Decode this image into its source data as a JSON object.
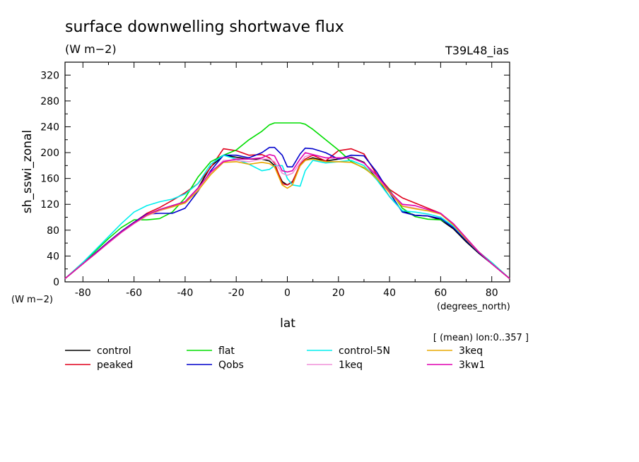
{
  "chart_data": {
    "type": "line",
    "title": "surface downwelling shortwave flux",
    "units": "(W m−2)",
    "model": "T39L48_ias",
    "ylabel": "sh_sswi_zonal",
    "yunits": "(W m−2)",
    "xlabel": "lat",
    "xunits": "(degrees_north)",
    "note": "[ (mean) lon:0..357 ]",
    "xlim": [
      -87,
      87
    ],
    "ylim": [
      0,
      340
    ],
    "xticks": [
      -80,
      -60,
      -40,
      -20,
      0,
      20,
      40,
      60,
      80
    ],
    "yticks": [
      0,
      40,
      80,
      120,
      160,
      200,
      240,
      280,
      320
    ],
    "grid": false,
    "legend": "bottom",
    "x": [
      -87,
      -80,
      -75,
      -70,
      -65,
      -60,
      -55,
      -50,
      -45,
      -40,
      -35,
      -30,
      -25,
      -20,
      -15,
      -10,
      -7,
      -5,
      -2,
      0,
      2,
      5,
      7,
      10,
      15,
      20,
      25,
      30,
      35,
      40,
      45,
      50,
      55,
      60,
      65,
      70,
      75,
      80,
      87
    ],
    "series": [
      {
        "name": "control",
        "color": "#000000",
        "values": [
          5,
          28,
          45,
          62,
          78,
          92,
          104,
          112,
          118,
          124,
          145,
          178,
          196,
          193,
          190,
          190,
          187,
          180,
          155,
          150,
          155,
          180,
          188,
          192,
          187,
          190,
          193,
          185,
          160,
          132,
          110,
          103,
          102,
          96,
          82,
          62,
          44,
          28,
          5
        ]
      },
      {
        "name": "peaked",
        "color": "#e0001c",
        "values": [
          5,
          28,
          45,
          62,
          78,
          92,
          106,
          115,
          126,
          138,
          152,
          177,
          206,
          203,
          196,
          197,
          192,
          184,
          152,
          150,
          154,
          182,
          190,
          196,
          187,
          203,
          206,
          198,
          166,
          143,
          130,
          122,
          114,
          106,
          88,
          66,
          46,
          28,
          5
        ]
      },
      {
        "name": "flat",
        "color": "#00dd00",
        "values": [
          5,
          30,
          48,
          67,
          84,
          96,
          96,
          98,
          108,
          130,
          162,
          186,
          196,
          204,
          220,
          233,
          243,
          246,
          246,
          246,
          246,
          246,
          244,
          236,
          220,
          204,
          186,
          176,
          162,
          142,
          114,
          101,
          97,
          96,
          86,
          66,
          46,
          30,
          5
        ]
      },
      {
        "name": "Qobs",
        "color": "#0000cc",
        "values": [
          5,
          28,
          45,
          62,
          78,
          92,
          105,
          106,
          106,
          114,
          140,
          172,
          196,
          196,
          192,
          200,
          208,
          208,
          196,
          178,
          178,
          198,
          207,
          206,
          200,
          190,
          196,
          195,
          170,
          138,
          108,
          103,
          102,
          98,
          84,
          64,
          45,
          28,
          5
        ]
      },
      {
        "name": "control-5N",
        "color": "#00eeee",
        "values": [
          5,
          30,
          50,
          70,
          90,
          108,
          118,
          124,
          128,
          136,
          152,
          182,
          196,
          190,
          182,
          172,
          174,
          180,
          180,
          160,
          150,
          148,
          172,
          188,
          184,
          186,
          188,
          180,
          158,
          132,
          110,
          108,
          105,
          100,
          86,
          66,
          46,
          30,
          5
        ]
      },
      {
        "name": "1keq",
        "color": "#f090d8",
        "values": [
          5,
          28,
          44,
          60,
          76,
          90,
          102,
          110,
          116,
          122,
          142,
          168,
          188,
          188,
          186,
          190,
          190,
          186,
          168,
          165,
          168,
          184,
          194,
          197,
          192,
          192,
          192,
          184,
          163,
          140,
          118,
          114,
          110,
          106,
          88,
          66,
          46,
          28,
          5
        ]
      },
      {
        "name": "3keq",
        "color": "#e8a800",
        "values": [
          5,
          28,
          44,
          61,
          77,
          91,
          103,
          111,
          116,
          122,
          141,
          166,
          185,
          186,
          182,
          185,
          183,
          178,
          150,
          145,
          150,
          180,
          188,
          190,
          186,
          186,
          185,
          177,
          160,
          138,
          117,
          113,
          110,
          105,
          88,
          66,
          46,
          28,
          5
        ]
      },
      {
        "name": "3kw1",
        "color": "#e000b0",
        "values": [
          5,
          28,
          44,
          61,
          77,
          91,
          104,
          112,
          118,
          124,
          145,
          170,
          186,
          190,
          190,
          192,
          197,
          195,
          172,
          170,
          172,
          190,
          200,
          197,
          192,
          192,
          192,
          184,
          165,
          140,
          120,
          118,
          112,
          106,
          90,
          68,
          46,
          28,
          5
        ]
      }
    ]
  }
}
